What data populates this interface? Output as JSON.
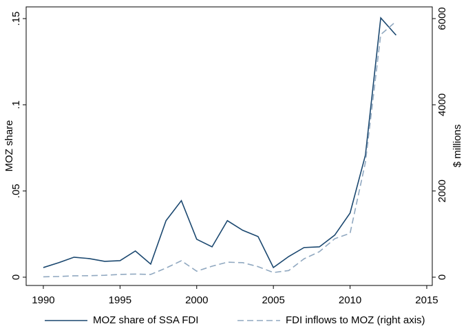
{
  "chart_data": {
    "type": "line",
    "x": [
      1990,
      1991,
      1992,
      1993,
      1994,
      1995,
      1996,
      1997,
      1998,
      1999,
      2000,
      2001,
      2002,
      2003,
      2004,
      2005,
      2006,
      2007,
      2008,
      2009,
      2010,
      2011,
      2012,
      2013
    ],
    "series": [
      {
        "name": "MOZ share of SSA FDI",
        "color": "#1a476f",
        "dash": false,
        "values": [
          0.0056,
          0.0084,
          0.0116,
          0.0108,
          0.0092,
          0.0096,
          0.0152,
          0.0076,
          0.0328,
          0.0444,
          0.022,
          0.0176,
          0.0328,
          0.0272,
          0.0236,
          0.0056,
          0.012,
          0.0172,
          0.0176,
          0.0244,
          0.0372,
          0.0708,
          0.1504,
          0.1404
        ]
      },
      {
        "name": "FDI inflows to MOZ (right axis)",
        "color": "#90a8c0",
        "dash": true,
        "axis": "y2",
        "values": [
          9,
          16,
          32,
          35,
          45,
          64,
          73,
          64,
          213,
          382,
          139,
          255,
          348,
          337,
          245,
          108,
          154,
          427,
          592,
          893,
          1018,
          2663,
          5629,
          5935
        ]
      }
    ],
    "xlim": [
      1988.88,
      2015.36
    ],
    "xticks": [
      1990,
      1995,
      2000,
      2005,
      2010,
      2015
    ],
    "ylim": [
      -0.0048,
      0.1568
    ],
    "yticks": [
      0,
      {
        "value": 0.05,
        "label": ".05"
      },
      {
        "value": 0.1,
        "label": ".1"
      },
      {
        "value": 0.15,
        "label": ".15"
      }
    ],
    "y2lim": [
      -192,
      6272
    ],
    "y2ticks": [
      0,
      2000,
      4000,
      6000
    ],
    "ylabel": "MOZ share",
    "y2label": "$ millions",
    "legend": "bottom"
  }
}
